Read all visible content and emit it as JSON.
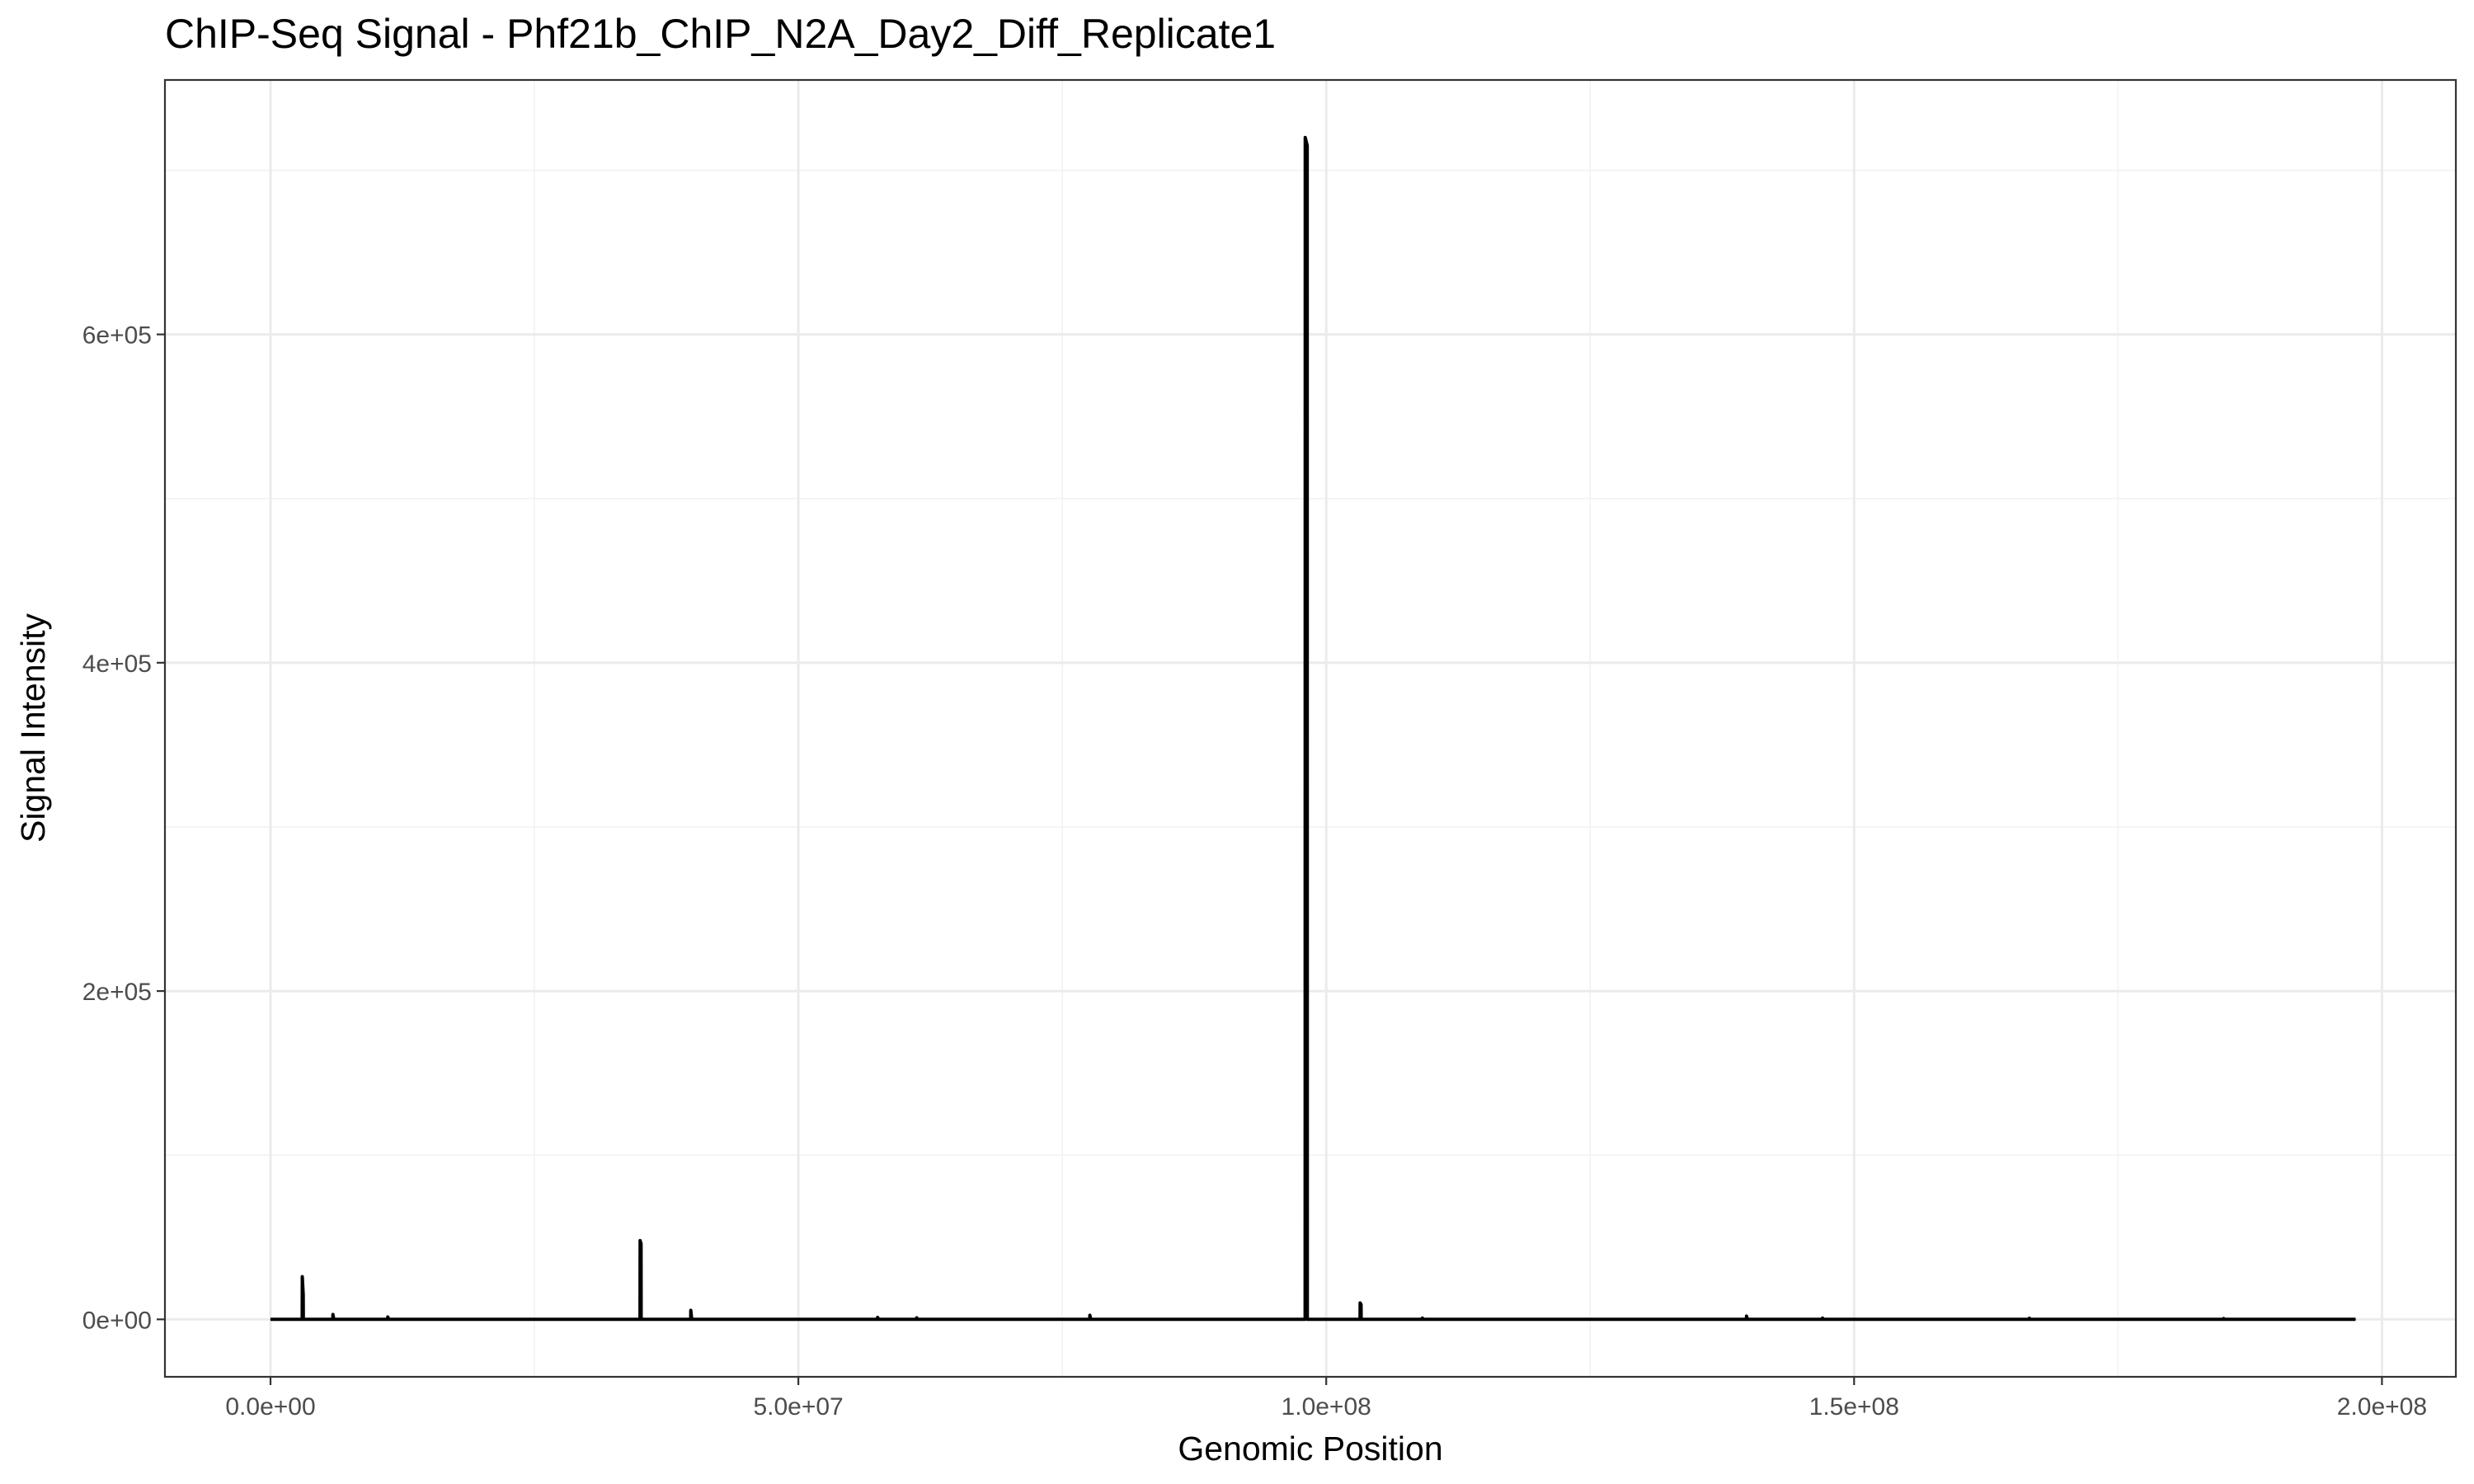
{
  "chart_data": {
    "type": "line",
    "title": "ChIP-Seq Signal - Phf21b_ChIP_N2A_Day2_Diff_Replicate1",
    "xlabel": "Genomic Position",
    "ylabel": "Signal Intensity",
    "xlim": [
      -10000000,
      207000000
    ],
    "ylim": [
      -35000,
      755000
    ],
    "x_ticks": [
      {
        "value": 0,
        "label": "0.0e+00"
      },
      {
        "value": 50000000,
        "label": "5.0e+07"
      },
      {
        "value": 100000000,
        "label": "1.0e+08"
      },
      {
        "value": 150000000,
        "label": "1.5e+08"
      },
      {
        "value": 200000000,
        "label": "2.0e+08"
      }
    ],
    "y_ticks": [
      {
        "value": 0,
        "label": "0e+00"
      },
      {
        "value": 200000,
        "label": "2e+05"
      },
      {
        "value": 400000,
        "label": "4e+05"
      },
      {
        "value": 600000,
        "label": "6e+05"
      }
    ],
    "grid": true,
    "series": [
      {
        "color": "#000000",
        "x": [
          0,
          3000000,
          3010000,
          3100000,
          3110000,
          5900000,
          5910000,
          6000000,
          11100000,
          11110000,
          11200000,
          35000000,
          35010000,
          35100000,
          35110000,
          39800000,
          39810000,
          39900000,
          57500000,
          57510000,
          57600000,
          61200000,
          61210000,
          61300000,
          77600000,
          77610000,
          77700000,
          98000000,
          98010000,
          98200000,
          98210000,
          103200000,
          103210000,
          103300000,
          103310000,
          109100000,
          109110000,
          109200000,
          139800000,
          139810000,
          139900000,
          147000000,
          147010000,
          147100000,
          166600000,
          166610000,
          166700000,
          185000000,
          185010000,
          185100000,
          197500000
        ],
        "values": [
          0,
          0,
          26000,
          15000,
          0,
          0,
          3000,
          0,
          0,
          1500,
          0,
          0,
          48000,
          46000,
          0,
          0,
          5500,
          0,
          0,
          1200,
          0,
          0,
          1000,
          0,
          0,
          2500,
          0,
          0,
          720000,
          715000,
          0,
          0,
          10000,
          9000,
          0,
          0,
          800,
          0,
          0,
          2000,
          0,
          0,
          800,
          0,
          0,
          700,
          0,
          0,
          500,
          0,
          0
        ]
      }
    ]
  }
}
